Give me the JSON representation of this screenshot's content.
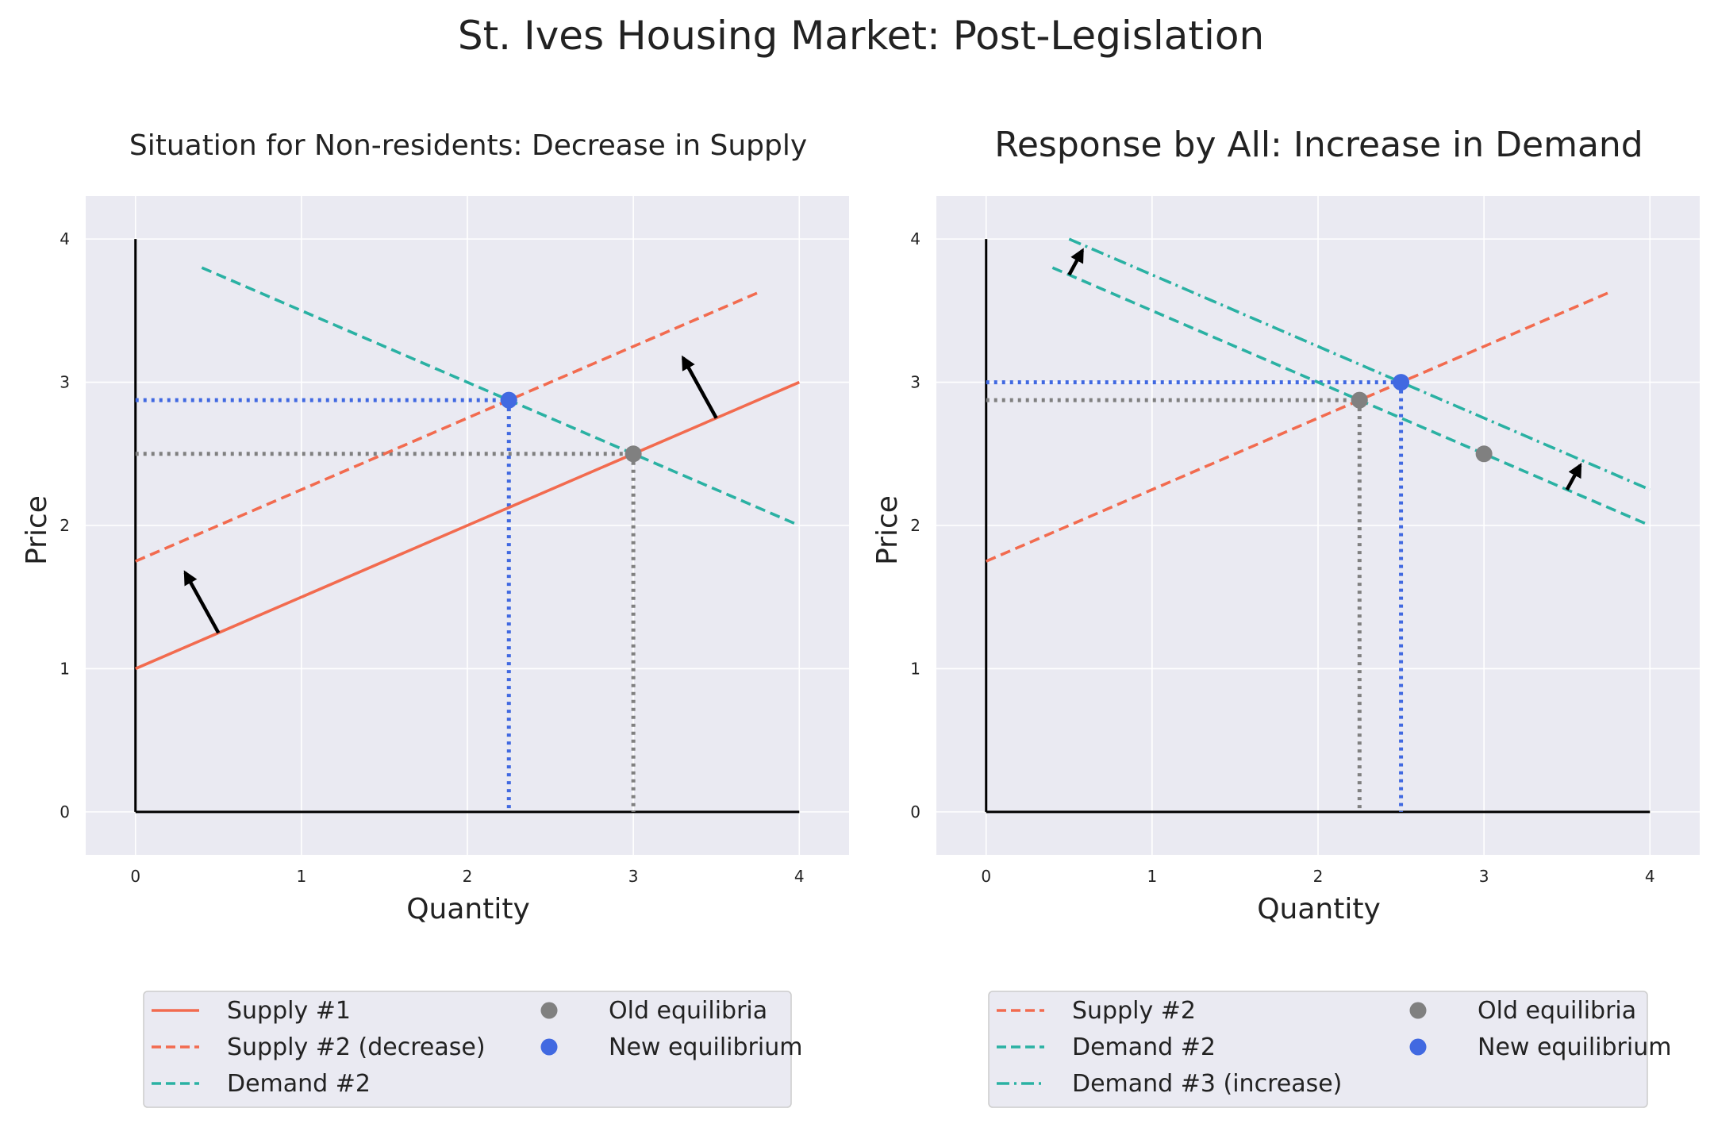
{
  "figure": {
    "title": "St. Ives Housing Market: Post-Legislation"
  },
  "colors": {
    "supply": "#f26b4f",
    "demand": "#2ab1a3",
    "old": "#808080",
    "new": "#4169e1",
    "axes_bg": "#eaeaf2",
    "grid": "#ffffff"
  },
  "chart_data": [
    {
      "type": "line",
      "title": "Situation for Non-residents: Decrease in Supply",
      "xlabel": "Quantity",
      "ylabel": "Price",
      "xlim": [
        -0.3,
        4.3
      ],
      "ylim": [
        -0.3,
        4.3
      ],
      "xticks": [
        0,
        1,
        2,
        3,
        4
      ],
      "yticks": [
        0,
        1,
        2,
        3,
        4
      ],
      "grid": true,
      "legend_position": "below",
      "series": [
        {
          "name": "Supply #1",
          "style": "solid",
          "color": "#f26b4f",
          "x": [
            0,
            4
          ],
          "y": [
            1,
            3
          ]
        },
        {
          "name": "Supply #2 (decrease)",
          "style": "dashed",
          "color": "#f26b4f",
          "x": [
            0,
            3.75
          ],
          "y": [
            1.75,
            3.625
          ]
        },
        {
          "name": "Demand #2",
          "style": "dashed",
          "color": "#2ab1a3",
          "x": [
            0.4,
            4
          ],
          "y": [
            3.8,
            2
          ]
        }
      ],
      "points": [
        {
          "name": "Old equilibria",
          "color": "#808080",
          "x": [
            3
          ],
          "y": [
            2.5
          ]
        },
        {
          "name": "New equilibrium",
          "color": "#4169e1",
          "x": [
            2.25
          ],
          "y": [
            2.875
          ]
        }
      ],
      "guides": [
        {
          "color": "#808080",
          "x": 3,
          "y": 2.5
        },
        {
          "color": "#4169e1",
          "x": 2.25,
          "y": 2.875
        }
      ],
      "arrows": [
        {
          "from": [
            0.5,
            1.25
          ],
          "to": [
            0.3,
            1.67
          ]
        },
        {
          "from": [
            3.5,
            2.75
          ],
          "to": [
            3.3,
            3.17
          ]
        }
      ],
      "legend": {
        "columns": [
          [
            {
              "label": "Supply #1",
              "kind": "line",
              "style": "solid",
              "color": "#f26b4f"
            },
            {
              "label": "Supply #2 (decrease)",
              "kind": "line",
              "style": "dashed",
              "color": "#f26b4f"
            },
            {
              "label": "Demand #2",
              "kind": "line",
              "style": "dashed",
              "color": "#2ab1a3"
            }
          ],
          [
            {
              "label": "Old equilibria",
              "kind": "marker",
              "color": "#808080"
            },
            {
              "label": "New equilibrium",
              "kind": "marker",
              "color": "#4169e1"
            }
          ]
        ]
      }
    },
    {
      "type": "line",
      "title": "Response by All: Increase in Demand",
      "xlabel": "Quantity",
      "ylabel": "Price",
      "xlim": [
        -0.3,
        4.3
      ],
      "ylim": [
        -0.3,
        4.3
      ],
      "xticks": [
        0,
        1,
        2,
        3,
        4
      ],
      "yticks": [
        0,
        1,
        2,
        3,
        4
      ],
      "grid": true,
      "legend_position": "below",
      "series": [
        {
          "name": "Supply #2",
          "style": "dashed",
          "color": "#f26b4f",
          "x": [
            0,
            3.75
          ],
          "y": [
            1.75,
            3.625
          ]
        },
        {
          "name": "Demand #2",
          "style": "dashed",
          "color": "#2ab1a3",
          "x": [
            0.4,
            4
          ],
          "y": [
            3.8,
            2
          ]
        },
        {
          "name": "Demand #3 (increase)",
          "style": "dashdot",
          "color": "#2ab1a3",
          "x": [
            0.5,
            4
          ],
          "y": [
            4,
            2.25
          ]
        }
      ],
      "points": [
        {
          "name": "Old equilibria",
          "color": "#808080",
          "x": [
            2.25,
            3
          ],
          "y": [
            2.875,
            2.5
          ]
        },
        {
          "name": "New equilibrium",
          "color": "#4169e1",
          "x": [
            2.5
          ],
          "y": [
            3
          ]
        }
      ],
      "guides": [
        {
          "color": "#808080",
          "x": 2.25,
          "y": 2.875
        },
        {
          "color": "#4169e1",
          "x": 2.5,
          "y": 3
        }
      ],
      "arrows": [
        {
          "from": [
            0.5,
            3.75
          ],
          "to": [
            0.58,
            3.92
          ]
        },
        {
          "from": [
            3.5,
            2.25
          ],
          "to": [
            3.58,
            2.42
          ]
        }
      ],
      "legend": {
        "columns": [
          [
            {
              "label": "Supply #2",
              "kind": "line",
              "style": "dashed",
              "color": "#f26b4f"
            },
            {
              "label": "Demand #2",
              "kind": "line",
              "style": "dashed",
              "color": "#2ab1a3"
            },
            {
              "label": "Demand #3 (increase)",
              "kind": "line",
              "style": "dashdot",
              "color": "#2ab1a3"
            }
          ],
          [
            {
              "label": "Old equilibria",
              "kind": "marker",
              "color": "#808080"
            },
            {
              "label": "New equilibrium",
              "kind": "marker",
              "color": "#4169e1"
            }
          ]
        ]
      }
    }
  ]
}
